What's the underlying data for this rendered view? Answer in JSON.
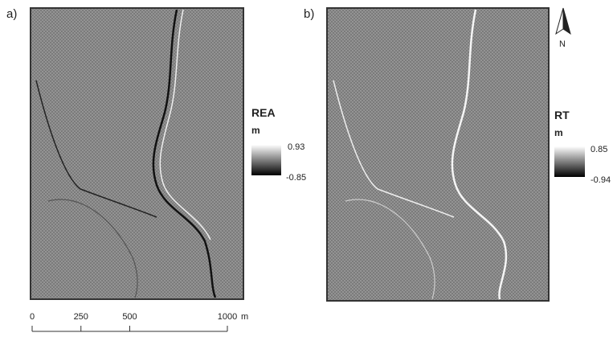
{
  "panels": [
    {
      "label": "a)",
      "legend": {
        "title": "REA",
        "unit": "m",
        "max": 0.93,
        "min": -0.85
      }
    },
    {
      "label": "b)",
      "legend": {
        "title": "RT",
        "unit": "m",
        "max": 0.85,
        "min": -0.94
      }
    }
  ],
  "north_arrow": {
    "label": "N"
  },
  "scale_bar": {
    "ticks": [
      0,
      250,
      500,
      1000
    ],
    "unit": "m"
  }
}
